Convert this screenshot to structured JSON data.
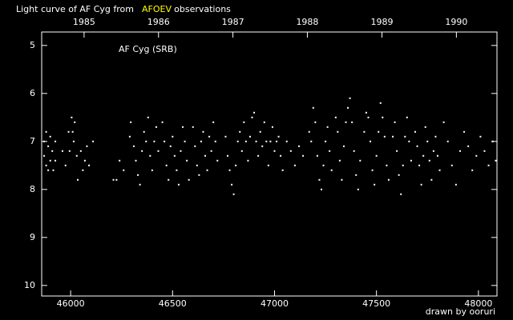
{
  "chart_data": {
    "type": "scatter",
    "title_prefix": "Light curve of AF Cyg from",
    "title_highlight": "AFOEV",
    "title_suffix": "observations",
    "highlight_color": "#ffff00",
    "label": "AF Cyg (SRB)",
    "credit": "drawn by ooruri",
    "credit_color": "#00d0e0",
    "color": "#ffffff",
    "xlim": [
      45858,
      48091
    ],
    "ylim": [
      10.22,
      4.72
    ],
    "xticks": [
      46000,
      46500,
      47000,
      47500,
      48000
    ],
    "yticks": [
      5,
      6,
      7,
      8,
      9,
      10
    ],
    "x2ticks": [
      {
        "value": 46066,
        "label": "1985"
      },
      {
        "value": 46431,
        "label": "1986"
      },
      {
        "value": 46796,
        "label": "1987"
      },
      {
        "value": 47161,
        "label": "1988"
      },
      {
        "value": 47527,
        "label": "1989"
      },
      {
        "value": 47892,
        "label": "1990"
      }
    ],
    "x": [
      45870,
      45870,
      45880,
      45880,
      45890,
      45890,
      45900,
      45900,
      45910,
      45915,
      45925,
      45925,
      45960,
      45975,
      45990,
      45995,
      46005,
      46010,
      46015,
      46020,
      46030,
      46035,
      46050,
      46060,
      46070,
      46080,
      46090,
      46110,
      46210,
      46225,
      46240,
      46260,
      46290,
      46295,
      46310,
      46320,
      46330,
      46340,
      46350,
      46360,
      46370,
      46380,
      46390,
      46400,
      46410,
      46420,
      46430,
      46450,
      46460,
      46470,
      46480,
      46490,
      46500,
      46510,
      46520,
      46530,
      46540,
      46550,
      46560,
      46570,
      46580,
      46600,
      46610,
      46620,
      46630,
      46640,
      46650,
      46660,
      46670,
      46680,
      46690,
      46700,
      46710,
      46720,
      46760,
      46770,
      46780,
      46790,
      46800,
      46810,
      46820,
      46830,
      46840,
      46850,
      46860,
      46870,
      46880,
      46890,
      46900,
      46910,
      46920,
      46930,
      46940,
      46950,
      46960,
      46970,
      46980,
      46990,
      47000,
      47010,
      47020,
      47030,
      47040,
      47060,
      47080,
      47100,
      47120,
      47140,
      47170,
      47180,
      47190,
      47200,
      47210,
      47220,
      47230,
      47240,
      47250,
      47260,
      47270,
      47280,
      47300,
      47310,
      47320,
      47330,
      47340,
      47350,
      47360,
      47370,
      47380,
      47390,
      47400,
      47410,
      47420,
      47440,
      47450,
      47460,
      47470,
      47480,
      47490,
      47500,
      47510,
      47520,
      47530,
      47540,
      47550,
      47560,
      47580,
      47590,
      47600,
      47610,
      47620,
      47630,
      47640,
      47650,
      47660,
      47670,
      47690,
      47700,
      47710,
      47720,
      47730,
      47740,
      47750,
      47760,
      47770,
      47780,
      47790,
      47800,
      47810,
      47830,
      47850,
      47870,
      47890,
      47910,
      47930,
      47950,
      47970,
      47990,
      48010,
      48030,
      48050,
      48070,
      48085
    ],
    "values": [
      7.0,
      7.3,
      6.8,
      7.5,
      7.1,
      7.6,
      6.9,
      7.4,
      7.2,
      7.6,
      7.0,
      7.4,
      7.2,
      7.5,
      6.8,
      7.2,
      6.5,
      6.8,
      7.0,
      6.6,
      7.3,
      7.8,
      7.2,
      7.6,
      7.4,
      7.1,
      7.5,
      7.0,
      7.8,
      7.8,
      7.4,
      7.6,
      6.9,
      6.6,
      7.1,
      7.4,
      7.7,
      7.9,
      7.2,
      6.8,
      7.0,
      6.5,
      7.3,
      7.6,
      7.0,
      6.7,
      7.2,
      6.6,
      7.0,
      7.5,
      7.8,
      7.1,
      6.9,
      7.3,
      7.6,
      7.9,
      7.2,
      6.7,
      7.0,
      7.4,
      7.8,
      6.7,
      7.1,
      7.5,
      7.7,
      7.0,
      6.8,
      7.3,
      7.6,
      6.9,
      7.2,
      6.6,
      7.0,
      7.4,
      6.9,
      7.3,
      7.6,
      7.9,
      8.1,
      7.5,
      7.0,
      6.8,
      7.2,
      6.6,
      7.0,
      7.4,
      6.9,
      6.5,
      6.4,
      7.0,
      7.3,
      6.8,
      7.1,
      6.6,
      7.0,
      7.5,
      7.0,
      6.7,
      7.2,
      7.0,
      6.9,
      7.3,
      7.6,
      7.0,
      7.2,
      7.5,
      7.1,
      7.3,
      6.8,
      7.0,
      6.3,
      6.6,
      7.3,
      7.8,
      8.0,
      7.5,
      7.0,
      6.7,
      7.2,
      7.6,
      6.5,
      6.8,
      7.4,
      7.8,
      7.1,
      6.6,
      6.3,
      6.1,
      6.6,
      7.2,
      7.7,
      8.0,
      7.4,
      6.8,
      6.4,
      6.5,
      7.0,
      7.6,
      7.9,
      7.3,
      6.8,
      6.2,
      6.5,
      6.9,
      7.5,
      7.8,
      6.9,
      6.6,
      7.2,
      7.7,
      8.1,
      7.5,
      6.9,
      6.5,
      7.0,
      7.4,
      6.8,
      7.1,
      7.5,
      7.9,
      7.3,
      6.7,
      7.0,
      7.4,
      7.8,
      7.2,
      6.9,
      7.3,
      7.6,
      6.6,
      7.0,
      7.5,
      7.9,
      7.2,
      6.8,
      7.1,
      7.6,
      7.3,
      6.9,
      7.2,
      7.5,
      7.0,
      7.4
    ]
  }
}
